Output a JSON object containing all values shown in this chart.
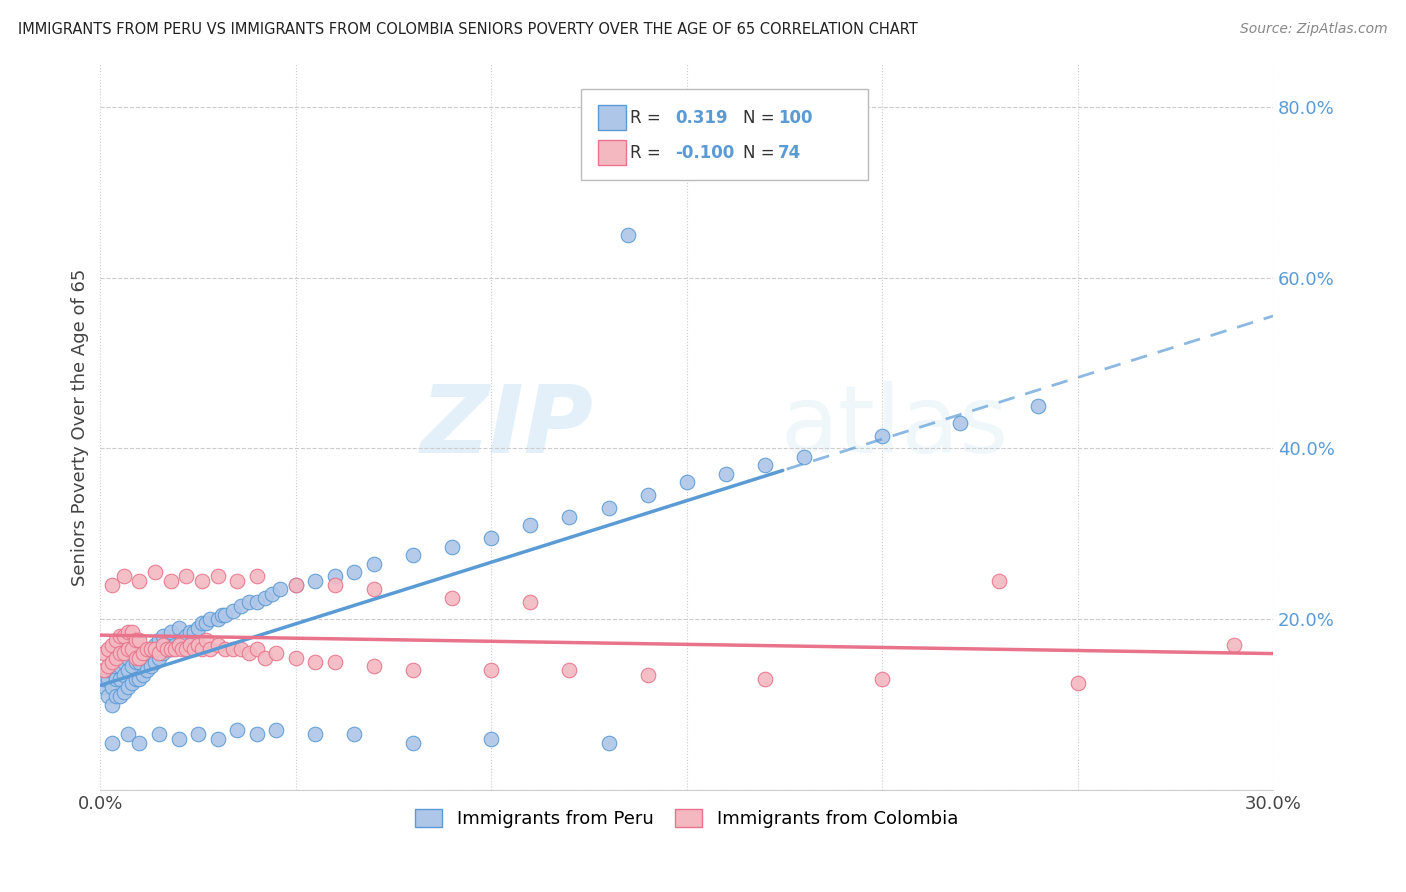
{
  "title": "IMMIGRANTS FROM PERU VS IMMIGRANTS FROM COLOMBIA SENIORS POVERTY OVER THE AGE OF 65 CORRELATION CHART",
  "source": "Source: ZipAtlas.com",
  "ylabel": "Seniors Poverty Over the Age of 65",
  "xlim": [
    0.0,
    0.3
  ],
  "ylim": [
    0.0,
    0.85
  ],
  "xticks": [
    0.0,
    0.05,
    0.1,
    0.15,
    0.2,
    0.25,
    0.3
  ],
  "xtick_labels": [
    "0.0%",
    "",
    "",
    "",
    "",
    "",
    "30.0%"
  ],
  "yticks_right": [
    0.0,
    0.2,
    0.4,
    0.6,
    0.8
  ],
  "ytick_labels_right": [
    "",
    "20.0%",
    "40.0%",
    "60.0%",
    "80.0%"
  ],
  "watermark_zip": "ZIP",
  "watermark_atlas": "atlas",
  "peru_color": "#aec6e8",
  "peru_color_line": "#5b9bd5",
  "colombia_color": "#f4b8c1",
  "colombia_color_line": "#e8738a",
  "peru_R": "0.319",
  "peru_N": "100",
  "colombia_R": "-0.100",
  "colombia_N": "74",
  "legend_label_peru": "Immigrants from Peru",
  "legend_label_colombia": "Immigrants from Colombia",
  "peru_x": [
    0.001,
    0.001,
    0.002,
    0.002,
    0.002,
    0.003,
    0.003,
    0.003,
    0.004,
    0.004,
    0.004,
    0.005,
    0.005,
    0.005,
    0.005,
    0.006,
    0.006,
    0.006,
    0.007,
    0.007,
    0.007,
    0.008,
    0.008,
    0.008,
    0.009,
    0.009,
    0.01,
    0.01,
    0.01,
    0.011,
    0.011,
    0.012,
    0.012,
    0.013,
    0.013,
    0.014,
    0.014,
    0.015,
    0.015,
    0.016,
    0.016,
    0.017,
    0.018,
    0.018,
    0.019,
    0.02,
    0.02,
    0.021,
    0.022,
    0.023,
    0.024,
    0.025,
    0.026,
    0.027,
    0.028,
    0.03,
    0.031,
    0.032,
    0.034,
    0.036,
    0.038,
    0.04,
    0.042,
    0.044,
    0.046,
    0.05,
    0.055,
    0.06,
    0.065,
    0.07,
    0.08,
    0.09,
    0.1,
    0.11,
    0.12,
    0.13,
    0.14,
    0.15,
    0.16,
    0.17,
    0.18,
    0.2,
    0.22,
    0.24,
    0.003,
    0.007,
    0.01,
    0.015,
    0.02,
    0.025,
    0.03,
    0.035,
    0.04,
    0.045,
    0.055,
    0.065,
    0.08,
    0.1,
    0.13,
    0.135
  ],
  "peru_y": [
    0.12,
    0.13,
    0.11,
    0.13,
    0.14,
    0.1,
    0.12,
    0.14,
    0.11,
    0.13,
    0.145,
    0.11,
    0.13,
    0.145,
    0.155,
    0.115,
    0.135,
    0.15,
    0.12,
    0.14,
    0.155,
    0.125,
    0.145,
    0.16,
    0.13,
    0.15,
    0.13,
    0.15,
    0.165,
    0.135,
    0.155,
    0.14,
    0.16,
    0.145,
    0.165,
    0.15,
    0.17,
    0.155,
    0.175,
    0.16,
    0.18,
    0.165,
    0.165,
    0.185,
    0.17,
    0.17,
    0.19,
    0.175,
    0.18,
    0.185,
    0.185,
    0.19,
    0.195,
    0.195,
    0.2,
    0.2,
    0.205,
    0.205,
    0.21,
    0.215,
    0.22,
    0.22,
    0.225,
    0.23,
    0.235,
    0.24,
    0.245,
    0.25,
    0.255,
    0.265,
    0.275,
    0.285,
    0.295,
    0.31,
    0.32,
    0.33,
    0.345,
    0.36,
    0.37,
    0.38,
    0.39,
    0.415,
    0.43,
    0.45,
    0.055,
    0.065,
    0.055,
    0.065,
    0.06,
    0.065,
    0.06,
    0.07,
    0.065,
    0.07,
    0.065,
    0.065,
    0.055,
    0.06,
    0.055,
    0.65
  ],
  "colombia_x": [
    0.001,
    0.001,
    0.002,
    0.002,
    0.003,
    0.003,
    0.004,
    0.004,
    0.005,
    0.005,
    0.006,
    0.006,
    0.007,
    0.007,
    0.008,
    0.008,
    0.009,
    0.009,
    0.01,
    0.01,
    0.011,
    0.012,
    0.013,
    0.014,
    0.015,
    0.016,
    0.017,
    0.018,
    0.019,
    0.02,
    0.021,
    0.022,
    0.023,
    0.024,
    0.025,
    0.026,
    0.027,
    0.028,
    0.03,
    0.032,
    0.034,
    0.036,
    0.038,
    0.04,
    0.042,
    0.045,
    0.05,
    0.055,
    0.06,
    0.07,
    0.08,
    0.1,
    0.12,
    0.14,
    0.17,
    0.2,
    0.25,
    0.29,
    0.003,
    0.006,
    0.01,
    0.014,
    0.018,
    0.022,
    0.026,
    0.03,
    0.035,
    0.04,
    0.05,
    0.06,
    0.07,
    0.09,
    0.11,
    0.23
  ],
  "colombia_y": [
    0.14,
    0.16,
    0.145,
    0.165,
    0.15,
    0.17,
    0.155,
    0.175,
    0.16,
    0.18,
    0.16,
    0.18,
    0.165,
    0.185,
    0.165,
    0.185,
    0.155,
    0.175,
    0.155,
    0.175,
    0.16,
    0.165,
    0.165,
    0.165,
    0.16,
    0.17,
    0.165,
    0.165,
    0.165,
    0.17,
    0.165,
    0.165,
    0.17,
    0.165,
    0.17,
    0.165,
    0.175,
    0.165,
    0.17,
    0.165,
    0.165,
    0.165,
    0.16,
    0.165,
    0.155,
    0.16,
    0.155,
    0.15,
    0.15,
    0.145,
    0.14,
    0.14,
    0.14,
    0.135,
    0.13,
    0.13,
    0.125,
    0.17,
    0.24,
    0.25,
    0.245,
    0.255,
    0.245,
    0.25,
    0.245,
    0.25,
    0.245,
    0.25,
    0.24,
    0.24,
    0.235,
    0.225,
    0.22,
    0.245
  ],
  "peru_line_x": [
    0.0,
    0.175,
    0.3
  ],
  "peru_line_y_solid_end": 0.175,
  "colombia_line_x": [
    0.0,
    0.3
  ],
  "background_color": "#ffffff",
  "grid_color": "#cccccc"
}
